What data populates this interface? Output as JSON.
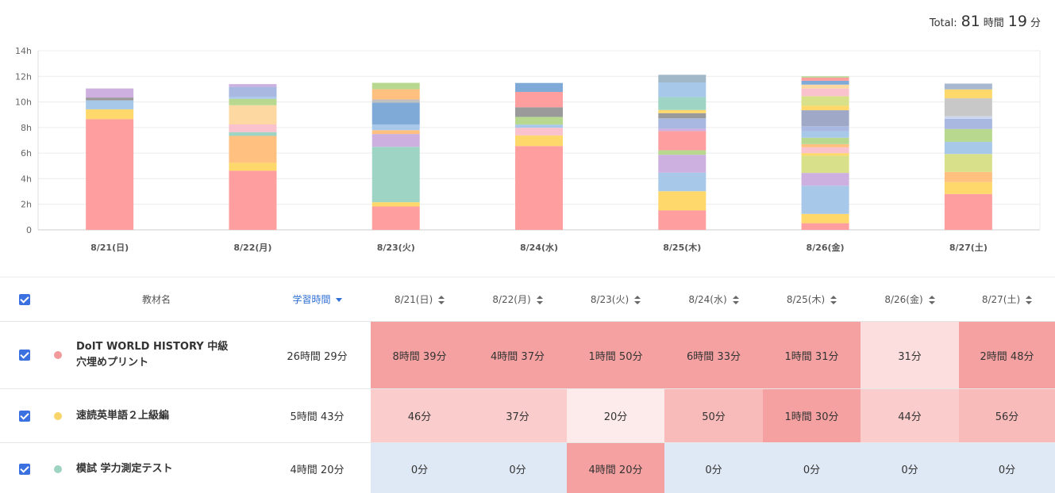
{
  "total": {
    "label": "Total:",
    "hours": "81",
    "hours_unit": "時間",
    "minutes": "19",
    "minutes_unit": "分"
  },
  "chart_data": {
    "type": "bar",
    "stacked": true,
    "categories": [
      "8/21(日)",
      "8/22(月)",
      "8/23(火)",
      "8/24(水)",
      "8/25(木)",
      "8/26(金)",
      "8/27(土)"
    ],
    "y_ticks": [
      "0",
      "2h",
      "4h",
      "6h",
      "8h",
      "10h",
      "12h",
      "14h"
    ],
    "ylim": [
      0,
      14
    ],
    "grid": true,
    "legend": "none",
    "stacks": [
      {
        "segments": [
          {
            "value": 8.65,
            "color": "#ff9e9e"
          },
          {
            "value": 0.77,
            "color": "#ffd86b"
          },
          {
            "value": 0.7,
            "color": "#a8c8ea"
          },
          {
            "value": 0.22,
            "color": "#9a9a9a"
          },
          {
            "value": 0.71,
            "color": "#cdb0e0"
          }
        ]
      },
      {
        "segments": [
          {
            "value": 4.62,
            "color": "#ff9e9e"
          },
          {
            "value": 0.62,
            "color": "#ffd86b"
          },
          {
            "value": 2.1,
            "color": "#ffc080"
          },
          {
            "value": 0.3,
            "color": "#9ed4c4"
          },
          {
            "value": 0.6,
            "color": "#f9c2cc"
          },
          {
            "value": 1.5,
            "color": "#fdd8a0"
          },
          {
            "value": 0.5,
            "color": "#b8d890"
          },
          {
            "value": 0.15,
            "color": "#a8c8ea"
          },
          {
            "value": 0.8,
            "color": "#a8b8e0"
          },
          {
            "value": 0.2,
            "color": "#cdb0e0"
          }
        ]
      },
      {
        "segments": [
          {
            "value": 1.83,
            "color": "#ff9e9e"
          },
          {
            "value": 0.33,
            "color": "#ffd86b"
          },
          {
            "value": 4.33,
            "color": "#9ed4c4"
          },
          {
            "value": 1.0,
            "color": "#cdb0e0"
          },
          {
            "value": 0.3,
            "color": "#ffc080"
          },
          {
            "value": 0.45,
            "color": "#a8c8ea"
          },
          {
            "value": 1.7,
            "color": "#7faad8"
          },
          {
            "value": 0.25,
            "color": "#c0c0c0"
          },
          {
            "value": 0.8,
            "color": "#ffc080"
          },
          {
            "value": 0.5,
            "color": "#b8d890"
          }
        ]
      },
      {
        "segments": [
          {
            "value": 6.55,
            "color": "#ff9e9e"
          },
          {
            "value": 0.83,
            "color": "#ffd86b"
          },
          {
            "value": 0.6,
            "color": "#f9c2cc"
          },
          {
            "value": 0.25,
            "color": "#a8c8ea"
          },
          {
            "value": 0.6,
            "color": "#b8d890"
          },
          {
            "value": 0.75,
            "color": "#9a9a9a"
          },
          {
            "value": 1.2,
            "color": "#ff9e9e"
          },
          {
            "value": 0.7,
            "color": "#7faad8"
          }
        ]
      },
      {
        "segments": [
          {
            "value": 1.52,
            "color": "#ff9e9e"
          },
          {
            "value": 1.5,
            "color": "#ffd86b"
          },
          {
            "value": 1.45,
            "color": "#a8c8ea"
          },
          {
            "value": 1.4,
            "color": "#cdb0e0"
          },
          {
            "value": 0.35,
            "color": "#b8d890"
          },
          {
            "value": 1.5,
            "color": "#ff9e9e"
          },
          {
            "value": 0.2,
            "color": "#cdb0e0"
          },
          {
            "value": 0.8,
            "color": "#a8b8e0"
          },
          {
            "value": 0.4,
            "color": "#9a9a9a"
          },
          {
            "value": 0.25,
            "color": "#ffd86b"
          },
          {
            "value": 1.0,
            "color": "#9ed4c4"
          },
          {
            "value": 1.15,
            "color": "#a8c8ea"
          },
          {
            "value": 0.6,
            "color": "#a0b8c8"
          }
        ]
      },
      {
        "segments": [
          {
            "value": 0.52,
            "color": "#ff9e9e"
          },
          {
            "value": 0.73,
            "color": "#ffd86b"
          },
          {
            "value": 2.2,
            "color": "#a8c8ea"
          },
          {
            "value": 1.0,
            "color": "#cdb0e0"
          },
          {
            "value": 1.35,
            "color": "#d8e08a"
          },
          {
            "value": 0.2,
            "color": "#ffd86b"
          },
          {
            "value": 0.45,
            "color": "#f9c2cc"
          },
          {
            "value": 0.25,
            "color": "#ffc080"
          },
          {
            "value": 0.5,
            "color": "#b8d890"
          },
          {
            "value": 0.5,
            "color": "#a8c8ea"
          },
          {
            "value": 0.4,
            "color": "#a8b8e0"
          },
          {
            "value": 1.25,
            "color": "#a0a8c8"
          },
          {
            "value": 0.35,
            "color": "#ffd86b"
          },
          {
            "value": 0.75,
            "color": "#d8e08a"
          },
          {
            "value": 0.6,
            "color": "#f9c2cc"
          },
          {
            "value": 0.3,
            "color": "#fdd8a0"
          },
          {
            "value": 0.3,
            "color": "#7faad8"
          },
          {
            "value": 0.25,
            "color": "#ff9e9e"
          },
          {
            "value": 0.1,
            "color": "#b8d890"
          }
        ]
      },
      {
        "segments": [
          {
            "value": 2.8,
            "color": "#ff9e9e"
          },
          {
            "value": 0.93,
            "color": "#ffd86b"
          },
          {
            "value": 0.8,
            "color": "#ffc080"
          },
          {
            "value": 1.4,
            "color": "#d8e08a"
          },
          {
            "value": 0.95,
            "color": "#a8c8ea"
          },
          {
            "value": 1.0,
            "color": "#b8d890"
          },
          {
            "value": 0.8,
            "color": "#a8b8e0"
          },
          {
            "value": 0.2,
            "color": "#cdd8f0"
          },
          {
            "value": 1.4,
            "color": "#c8c8c8"
          },
          {
            "value": 0.7,
            "color": "#ffd86b"
          },
          {
            "value": 0.45,
            "color": "#a8b8d0"
          }
        ]
      }
    ]
  },
  "table": {
    "headers": {
      "material": "教材名",
      "study_time": "学習時間",
      "days": [
        "8/21(日)",
        "8/22(月)",
        "8/23(火)",
        "8/24(水)",
        "8/25(木)",
        "8/26(金)",
        "8/27(土)"
      ]
    },
    "rows": [
      {
        "name": "DoIT WORLD HISTORY 中級 穴埋めプリント",
        "dot_color": "#f29a9a",
        "total": "26時間 29分",
        "cells": [
          {
            "text": "8時間 39分",
            "bg": "#f6a1a1"
          },
          {
            "text": "4時間 37分",
            "bg": "#f6a1a1"
          },
          {
            "text": "1時間 50分",
            "bg": "#f6a1a1"
          },
          {
            "text": "6時間 33分",
            "bg": "#f6a1a1"
          },
          {
            "text": "1時間 31分",
            "bg": "#f6a1a1"
          },
          {
            "text": "31分",
            "bg": "#fcdede"
          },
          {
            "text": "2時間 48分",
            "bg": "#f6a1a1"
          }
        ]
      },
      {
        "name": "速読英単語２上級編",
        "dot_color": "#f8d56b",
        "total": "5時間 43分",
        "cells": [
          {
            "text": "46分",
            "bg": "#fbcccc"
          },
          {
            "text": "37分",
            "bg": "#fbcccc"
          },
          {
            "text": "20分",
            "bg": "#fdeaea"
          },
          {
            "text": "50分",
            "bg": "#f9baba"
          },
          {
            "text": "1時間 30分",
            "bg": "#f6a1a1"
          },
          {
            "text": "44分",
            "bg": "#fbcccc"
          },
          {
            "text": "56分",
            "bg": "#f9baba"
          }
        ]
      },
      {
        "name": "模試 学力測定テスト",
        "dot_color": "#9fd3c2",
        "total": "4時間 20分",
        "cells": [
          {
            "text": "0分",
            "bg": "#dfe8f5"
          },
          {
            "text": "0分",
            "bg": "#dfe8f5"
          },
          {
            "text": "4時間 20分",
            "bg": "#f6a1a1"
          },
          {
            "text": "0分",
            "bg": "#dfe8f5"
          },
          {
            "text": "0分",
            "bg": "#dfe8f5"
          },
          {
            "text": "0分",
            "bg": "#dfe8f5"
          },
          {
            "text": "0分",
            "bg": "#dfe8f5"
          }
        ]
      }
    ]
  }
}
